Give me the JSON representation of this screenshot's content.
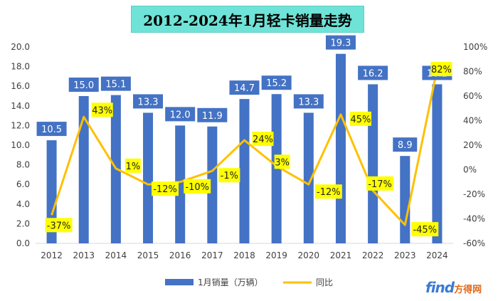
{
  "chart_data": {
    "type": "bar",
    "title": "2012-2024年1月轻卡销量走势",
    "categories": [
      "2012",
      "2013",
      "2014",
      "2015",
      "2016",
      "2017",
      "2018",
      "2019",
      "2020",
      "2021",
      "2022",
      "2023",
      "2024"
    ],
    "series": [
      {
        "name": "1月销量（万辆）",
        "type": "bar",
        "axis": "left",
        "color": "#4472c4",
        "values": [
          10.5,
          15.0,
          15.1,
          13.3,
          12.0,
          11.9,
          14.7,
          15.2,
          13.3,
          19.3,
          16.2,
          8.9,
          16.2
        ],
        "labels": [
          "10.5",
          "15.0",
          "15.1",
          "13.3",
          "12.0",
          "11.9",
          "14.7",
          "15.2",
          "13.3",
          "19.3",
          "16.2",
          "8.9",
          "16.2"
        ]
      },
      {
        "name": "同比",
        "type": "line",
        "axis": "right",
        "color": "#ffc000",
        "values": [
          -37,
          43,
          1,
          -12,
          -10,
          -1,
          24,
          3,
          -12,
          45,
          -17,
          -45,
          82
        ],
        "labels": [
          "-37%",
          "43%",
          "1%",
          "-12%",
          "-10%",
          "-1%",
          "24%",
          "3%",
          "-12%",
          "45%",
          "-17%",
          "-45%",
          "82%"
        ]
      }
    ],
    "y_left": {
      "min": 0,
      "max": 20,
      "step": 2,
      "ticks": [
        "0.0",
        "2.0",
        "4.0",
        "6.0",
        "8.0",
        "10.0",
        "12.0",
        "14.0",
        "16.0",
        "18.0",
        "20.0"
      ]
    },
    "y_right": {
      "min": -60,
      "max": 100,
      "step": 20,
      "ticks": [
        "-60%",
        "-40%",
        "-20%",
        "0%",
        "20%",
        "40%",
        "60%",
        "80%",
        "100%"
      ]
    },
    "grid": false,
    "legend_position": "bottom"
  },
  "watermark": {
    "brand": "find",
    "sub": "方得网"
  }
}
